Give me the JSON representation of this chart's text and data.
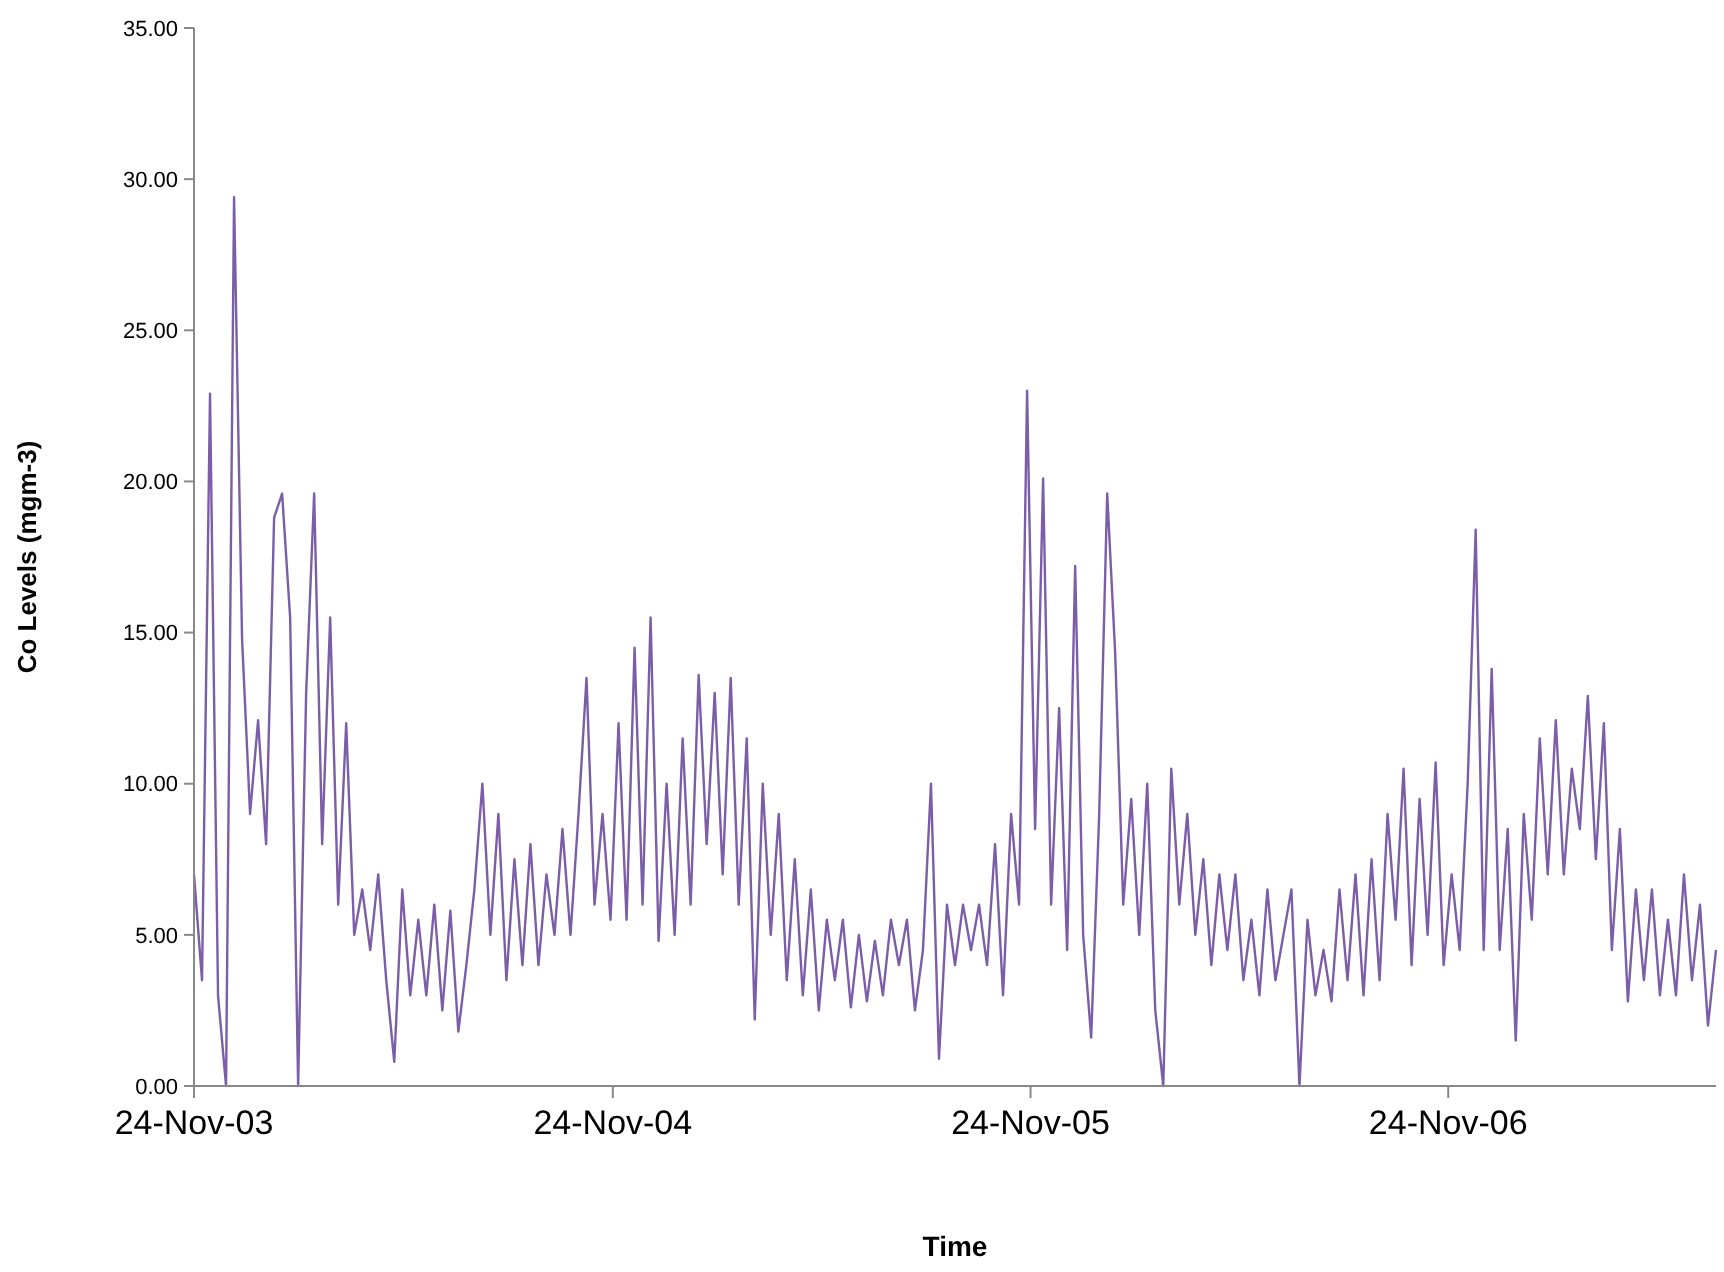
{
  "chart_data": {
    "type": "line",
    "xlabel": "Time",
    "ylabel": "Co Levels (mgm-3)",
    "x": [
      "2003-11-24",
      "2003-12-01",
      "2003-12-08",
      "2003-12-15",
      "2003-12-22",
      "2003-12-29",
      "2004-01-05",
      "2004-01-12",
      "2004-01-19",
      "2004-01-26",
      "2004-02-02",
      "2004-02-09",
      "2004-02-16",
      "2004-02-23",
      "2004-03-01",
      "2004-03-08",
      "2004-03-15",
      "2004-03-22",
      "2004-03-29",
      "2004-04-05",
      "2004-04-12",
      "2004-04-19",
      "2004-04-26",
      "2004-05-03",
      "2004-05-10",
      "2004-05-17",
      "2004-05-24",
      "2004-05-31",
      "2004-06-07",
      "2004-06-14",
      "2004-06-21",
      "2004-06-28",
      "2004-07-05",
      "2004-07-12",
      "2004-07-19",
      "2004-07-26",
      "2004-08-02",
      "2004-08-09",
      "2004-08-16",
      "2004-08-23",
      "2004-08-30",
      "2004-09-06",
      "2004-09-13",
      "2004-09-20",
      "2004-09-27",
      "2004-10-04",
      "2004-10-11",
      "2004-10-18",
      "2004-10-25",
      "2004-11-01",
      "2004-11-08",
      "2004-11-15",
      "2004-11-22",
      "2004-11-29",
      "2004-12-06",
      "2004-12-13",
      "2004-12-20",
      "2004-12-27",
      "2005-01-03",
      "2005-01-10",
      "2005-01-17",
      "2005-01-24",
      "2005-01-31",
      "2005-02-07",
      "2005-02-14",
      "2005-02-21",
      "2005-02-28",
      "2005-03-07",
      "2005-03-14",
      "2005-03-21",
      "2005-03-28",
      "2005-04-04",
      "2005-04-11",
      "2005-04-18",
      "2005-04-25",
      "2005-05-02",
      "2005-05-09",
      "2005-05-16",
      "2005-05-23",
      "2005-05-30",
      "2005-06-06",
      "2005-06-13",
      "2005-06-20",
      "2005-06-27",
      "2005-07-04",
      "2005-07-11",
      "2005-07-18",
      "2005-07-25",
      "2005-08-01",
      "2005-08-08",
      "2005-08-15",
      "2005-08-22",
      "2005-08-29",
      "2005-09-05",
      "2005-09-12",
      "2005-09-19",
      "2005-09-26",
      "2005-10-03",
      "2005-10-10",
      "2005-10-17",
      "2005-10-24",
      "2005-10-31",
      "2005-11-07",
      "2005-11-14",
      "2005-11-21",
      "2005-11-28",
      "2005-12-05",
      "2005-12-12",
      "2005-12-19",
      "2005-12-26",
      "2006-01-02",
      "2006-01-09",
      "2006-01-16",
      "2006-01-23",
      "2006-01-30",
      "2006-02-06",
      "2006-02-13",
      "2006-02-20",
      "2006-02-27",
      "2006-03-06",
      "2006-03-13",
      "2006-03-20",
      "2006-03-27",
      "2006-04-03",
      "2006-04-10",
      "2006-04-17",
      "2006-04-24",
      "2006-05-01",
      "2006-05-08",
      "2006-05-15",
      "2006-05-22",
      "2006-05-29",
      "2006-06-05",
      "2006-06-12",
      "2006-06-19",
      "2006-06-26",
      "2006-07-03",
      "2006-07-10",
      "2006-07-17",
      "2006-07-24",
      "2006-07-31",
      "2006-08-07",
      "2006-08-14",
      "2006-08-21",
      "2006-08-28",
      "2006-09-04",
      "2006-09-11",
      "2006-09-18",
      "2006-09-25",
      "2006-10-02",
      "2006-10-09",
      "2006-10-16",
      "2006-10-23",
      "2006-10-30",
      "2006-11-06",
      "2006-11-13",
      "2006-11-20",
      "2006-11-27",
      "2006-12-04",
      "2006-12-11",
      "2006-12-18",
      "2006-12-25",
      "2007-01-01",
      "2007-01-08",
      "2007-01-15",
      "2007-01-22",
      "2007-01-29",
      "2007-02-05",
      "2007-02-12",
      "2007-02-19",
      "2007-02-26",
      "2007-03-05",
      "2007-03-12",
      "2007-03-19",
      "2007-03-26",
      "2007-04-02",
      "2007-04-09",
      "2007-04-16",
      "2007-04-23",
      "2007-04-30",
      "2007-05-07",
      "2007-05-14",
      "2007-05-21",
      "2007-05-28",
      "2007-06-04",
      "2007-06-11",
      "2007-06-18",
      "2007-06-25",
      "2007-07-02",
      "2007-07-09",
      "2007-07-16"
    ],
    "series": [
      {
        "color": "#7b5ea7",
        "values": [
          7.0,
          3.5,
          22.9,
          3.0,
          0.0,
          29.4,
          14.8,
          9.0,
          12.1,
          8.0,
          18.8,
          19.6,
          15.5,
          0.0,
          13.0,
          19.6,
          8.0,
          15.5,
          6.0,
          12.0,
          5.0,
          6.5,
          4.5,
          7.0,
          3.5,
          0.8,
          6.5,
          3.0,
          5.5,
          3.0,
          6.0,
          2.5,
          5.8,
          1.8,
          4.0,
          6.5,
          10.0,
          5.0,
          9.0,
          3.5,
          7.5,
          4.0,
          8.0,
          4.0,
          7.0,
          5.0,
          8.5,
          5.0,
          9.0,
          13.5,
          6.0,
          9.0,
          5.5,
          12.0,
          5.5,
          14.5,
          6.0,
          15.5,
          4.8,
          10.0,
          5.0,
          11.5,
          6.0,
          13.6,
          8.0,
          13.0,
          7.0,
          13.5,
          6.0,
          11.5,
          2.2,
          10.0,
          5.0,
          9.0,
          3.5,
          7.5,
          3.0,
          6.5,
          2.5,
          5.5,
          3.5,
          5.5,
          2.6,
          5.0,
          2.8,
          4.8,
          3.0,
          5.5,
          4.0,
          5.5,
          2.5,
          4.5,
          10.0,
          0.9,
          6.0,
          4.0,
          6.0,
          4.5,
          6.0,
          4.0,
          8.0,
          3.0,
          9.0,
          6.0,
          23.0,
          8.5,
          20.1,
          6.0,
          12.5,
          4.5,
          17.2,
          5.0,
          1.6,
          9.0,
          19.6,
          14.3,
          6.0,
          9.5,
          5.0,
          10.0,
          2.5,
          0.0,
          10.5,
          6.0,
          9.0,
          5.0,
          7.5,
          4.0,
          7.0,
          4.5,
          7.0,
          3.5,
          5.5,
          3.0,
          6.5,
          3.5,
          5.0,
          6.5,
          0.0,
          5.5,
          3.0,
          4.5,
          2.8,
          6.5,
          3.5,
          7.0,
          3.0,
          7.5,
          3.5,
          9.0,
          5.5,
          10.5,
          4.0,
          9.5,
          5.0,
          10.7,
          4.0,
          7.0,
          4.5,
          10.0,
          18.4,
          4.5,
          13.8,
          4.5,
          8.5,
          1.5,
          9.0,
          5.5,
          11.5,
          7.0,
          12.1,
          7.0,
          10.5,
          8.5,
          12.9,
          7.5,
          12.0,
          4.5,
          8.5,
          2.8,
          6.5,
          3.5,
          6.5,
          3.0,
          5.5,
          3.0,
          7.0,
          3.5,
          6.0,
          2.0,
          4.5
        ]
      }
    ],
    "xlim": [
      "2003-11-24",
      "2007-07-16"
    ],
    "xticks": [
      {
        "value": "2003-11-24",
        "label": "24-Nov-03"
      },
      {
        "value": "2004-11-24",
        "label": "24-Nov-04"
      },
      {
        "value": "2005-11-24",
        "label": "24-Nov-05"
      },
      {
        "value": "2006-11-24",
        "label": "24-Nov-06"
      }
    ],
    "ylim": [
      0,
      35
    ],
    "yticks": [
      {
        "value": 0,
        "label": "0.00"
      },
      {
        "value": 5,
        "label": "5.00"
      },
      {
        "value": 10,
        "label": "10.00"
      },
      {
        "value": 15,
        "label": "15.00"
      },
      {
        "value": 20,
        "label": "20.00"
      },
      {
        "value": 25,
        "label": "25.00"
      },
      {
        "value": 30,
        "label": "30.00"
      },
      {
        "value": 35,
        "label": "35.00"
      }
    ],
    "grid": false,
    "marker": "none",
    "line_style": "solid"
  }
}
